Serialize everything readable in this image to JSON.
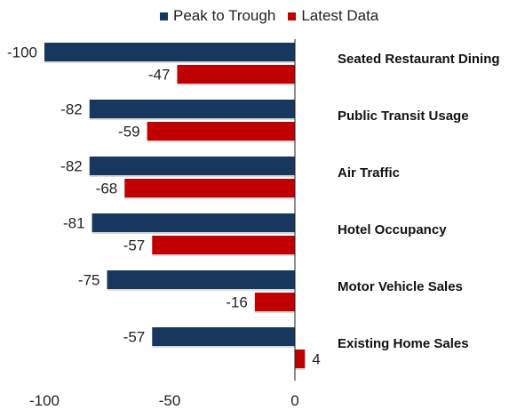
{
  "chart_data": {
    "type": "bar",
    "orientation": "horizontal",
    "categories": [
      "Seated Restaurant Dining",
      "Public Transit Usage",
      "Air Traffic",
      "Hotel Occupancy",
      "Motor Vehicle Sales",
      "Existing Home Sales"
    ],
    "series": [
      {
        "name": "Peak to Trough",
        "values": [
          -100,
          -82,
          -82,
          -81,
          -75,
          -57
        ],
        "color": "#17375e"
      },
      {
        "name": "Latest Data",
        "values": [
          -47,
          -59,
          -68,
          -57,
          -16,
          4
        ],
        "color": "#c00000"
      }
    ],
    "xlim": [
      -100,
      0
    ],
    "xticks": [
      "-100",
      "-50",
      "0"
    ],
    "legend_position": "top",
    "grid": false
  }
}
